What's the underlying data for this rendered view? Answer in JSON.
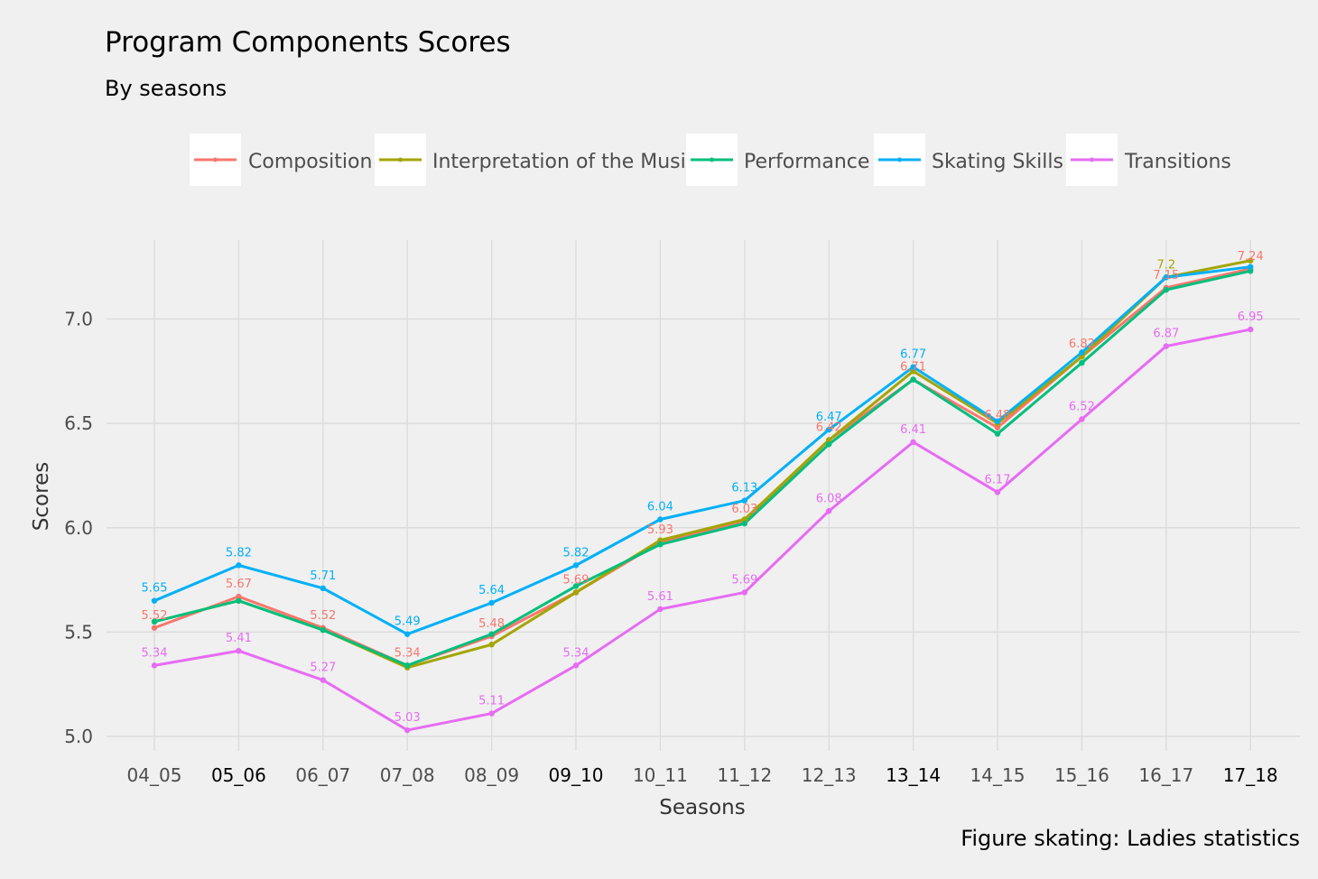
{
  "chart_data": {
    "type": "line",
    "title": "Program Components Scores",
    "subtitle": "By seasons",
    "xlabel": "Seasons",
    "ylabel": "Scores",
    "caption": "Figure skating: Ladies statistics",
    "categories": [
      "04_05",
      "05_06",
      "06_07",
      "07_08",
      "08_09",
      "09_10",
      "10_11",
      "11_12",
      "12_13",
      "13_14",
      "14_15",
      "15_16",
      "16_17",
      "17_18"
    ],
    "y_ticks": [
      "5.0",
      "5.5",
      "6.0",
      "6.5",
      "7.0"
    ],
    "ylim": [
      4.97,
      7.32
    ],
    "grid": true,
    "legend_position": "top",
    "series": [
      {
        "name": "Composition",
        "color": "#F8766D",
        "values": [
          5.52,
          5.67,
          5.52,
          5.34,
          5.48,
          5.69,
          5.93,
          6.03,
          6.42,
          6.71,
          6.48,
          6.82,
          7.15,
          7.24
        ],
        "labels": [
          "5.52",
          "5.67",
          "5.52",
          "5.34",
          "5.48",
          "5.69",
          "5.93",
          "6.03",
          "6.42",
          "6.71",
          "6.48",
          "6.82",
          "7.15",
          "7.24"
        ]
      },
      {
        "name": "Interpretation of the Music",
        "color": "#A3A500",
        "values": [
          5.55,
          5.65,
          5.51,
          5.33,
          5.44,
          5.69,
          5.94,
          6.04,
          6.42,
          6.75,
          6.5,
          6.82,
          7.2,
          7.28
        ],
        "labels": [
          "",
          "",
          "",
          "",
          "",
          "",
          "",
          "",
          "",
          "",
          "",
          "",
          "7.2",
          ""
        ]
      },
      {
        "name": "Performance",
        "color": "#00BF7D",
        "values": [
          5.55,
          5.65,
          5.51,
          5.34,
          5.49,
          5.72,
          5.92,
          6.02,
          6.4,
          6.71,
          6.45,
          6.79,
          7.14,
          7.23
        ],
        "labels": [
          "",
          "",
          "",
          "",
          "",
          "",
          "",
          "",
          "",
          "",
          "",
          "",
          "",
          ""
        ]
      },
      {
        "name": "Skating Skills",
        "color": "#00B0F6",
        "values": [
          5.65,
          5.82,
          5.71,
          5.49,
          5.64,
          5.82,
          6.04,
          6.13,
          6.47,
          6.77,
          6.51,
          6.84,
          7.2,
          7.25
        ],
        "labels": [
          "5.65",
          "5.82",
          "5.71",
          "5.49",
          "5.64",
          "5.82",
          "6.04",
          "6.13",
          "6.47",
          "6.77",
          "",
          "",
          "",
          ""
        ]
      },
      {
        "name": "Transitions",
        "color": "#E76BF3",
        "values": [
          5.34,
          5.41,
          5.27,
          5.03,
          5.11,
          5.34,
          5.61,
          5.69,
          6.08,
          6.41,
          6.17,
          6.52,
          6.87,
          6.95
        ],
        "labels": [
          "5.34",
          "5.41",
          "5.27",
          "5.03",
          "5.11",
          "5.34",
          "5.61",
          "5.69",
          "6.08",
          "6.41",
          "6.17",
          "6.52",
          "6.87",
          "6.95"
        ]
      }
    ],
    "dark_ticks": [
      "05_06",
      "09_10",
      "13_14",
      "17_18"
    ]
  }
}
